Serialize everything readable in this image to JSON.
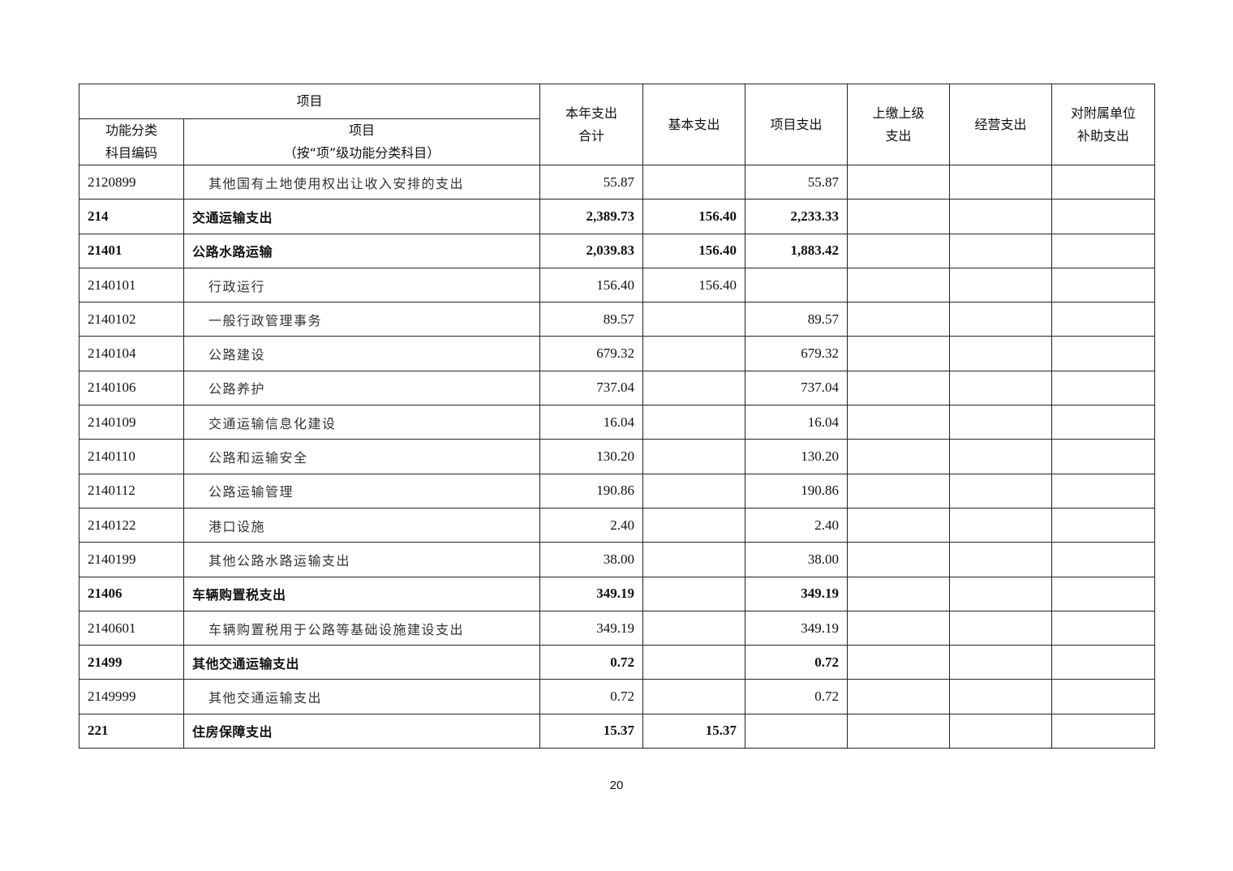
{
  "header": {
    "item_group": "项目",
    "code": "功能分类\n科目编码",
    "code_line1": "功能分类",
    "code_line2": "科目编码",
    "name_line1": "项目",
    "name_line2": "（按“项”级功能分类科目）",
    "total_line1": "本年支出",
    "total_line2": "合计",
    "basic": "基本支出",
    "project": "项目支出",
    "upper_line1": "上缴上级",
    "upper_line2": "支出",
    "business": "经营支出",
    "subsidy_line1": "对附属单位",
    "subsidy_line2": "补助支出"
  },
  "rows": [
    {
      "code": "2120899",
      "name": "其他国有土地使用权出让收入安排的支出",
      "total": "55.87",
      "basic": "",
      "project": "55.87",
      "bold": false
    },
    {
      "code": "214",
      "name": "交通运输支出",
      "total": "2,389.73",
      "basic": "156.40",
      "project": "2,233.33",
      "bold": true
    },
    {
      "code": "21401",
      "name": "公路水路运输",
      "total": "2,039.83",
      "basic": "156.40",
      "project": "1,883.42",
      "bold": true
    },
    {
      "code": "2140101",
      "name": "行政运行",
      "total": "156.40",
      "basic": "156.40",
      "project": "",
      "bold": false
    },
    {
      "code": "2140102",
      "name": "一般行政管理事务",
      "total": "89.57",
      "basic": "",
      "project": "89.57",
      "bold": false
    },
    {
      "code": "2140104",
      "name": "公路建设",
      "total": "679.32",
      "basic": "",
      "project": "679.32",
      "bold": false
    },
    {
      "code": "2140106",
      "name": "公路养护",
      "total": "737.04",
      "basic": "",
      "project": "737.04",
      "bold": false
    },
    {
      "code": "2140109",
      "name": "交通运输信息化建设",
      "total": "16.04",
      "basic": "",
      "project": "16.04",
      "bold": false
    },
    {
      "code": "2140110",
      "name": "公路和运输安全",
      "total": "130.20",
      "basic": "",
      "project": "130.20",
      "bold": false
    },
    {
      "code": "2140112",
      "name": "公路运输管理",
      "total": "190.86",
      "basic": "",
      "project": "190.86",
      "bold": false
    },
    {
      "code": "2140122",
      "name": "港口设施",
      "total": "2.40",
      "basic": "",
      "project": "2.40",
      "bold": false
    },
    {
      "code": "2140199",
      "name": "其他公路水路运输支出",
      "total": "38.00",
      "basic": "",
      "project": "38.00",
      "bold": false
    },
    {
      "code": "21406",
      "name": "车辆购置税支出",
      "total": "349.19",
      "basic": "",
      "project": "349.19",
      "bold": true
    },
    {
      "code": "2140601",
      "name": "车辆购置税用于公路等基础设施建设支出",
      "total": "349.19",
      "basic": "",
      "project": "349.19",
      "bold": false
    },
    {
      "code": "21499",
      "name": "其他交通运输支出",
      "total": "0.72",
      "basic": "",
      "project": "0.72",
      "bold": true
    },
    {
      "code": "2149999",
      "name": "其他交通运输支出",
      "total": "0.72",
      "basic": "",
      "project": "0.72",
      "bold": false
    },
    {
      "code": "221",
      "name": "住房保障支出",
      "total": "15.37",
      "basic": "15.37",
      "project": "",
      "bold": true
    }
  ],
  "page_number": "20"
}
